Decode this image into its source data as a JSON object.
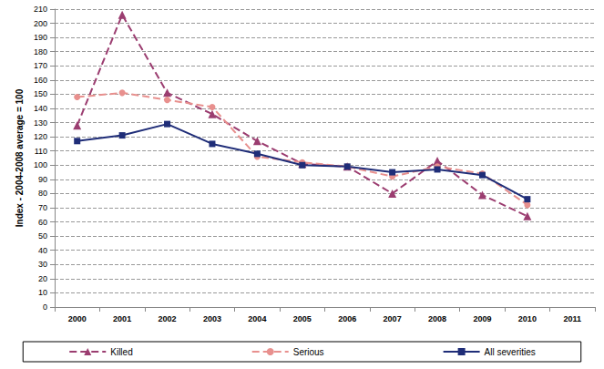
{
  "chart_data": {
    "type": "line",
    "y_label": "Index - 2004-2008 average = 100",
    "categories": [
      "2000",
      "2001",
      "2002",
      "2003",
      "2004",
      "2005",
      "2006",
      "2007",
      "2008",
      "2009",
      "2010",
      "2011"
    ],
    "series": [
      {
        "name": "Killed",
        "color": "#9b3d70",
        "marker": "triangle",
        "line_style": "dashed",
        "values": [
          128,
          206,
          151,
          136,
          117,
          101,
          99,
          80,
          103,
          79,
          64,
          null
        ]
      },
      {
        "name": "Serious",
        "color": "#e8908e",
        "marker": "circle",
        "line_style": "dashed",
        "values": [
          148,
          151,
          146,
          141,
          106,
          102,
          99,
          92,
          99,
          94,
          72,
          null
        ]
      },
      {
        "name": "All severities",
        "color": "#1f2d78",
        "marker": "square",
        "line_style": "solid",
        "values": [
          117,
          121,
          129,
          115,
          108,
          100,
          99,
          95,
          97,
          93,
          76,
          null
        ]
      }
    ],
    "ylim": [
      0,
      210
    ],
    "yticks": [
      0,
      10,
      20,
      30,
      40,
      50,
      60,
      70,
      80,
      90,
      100,
      110,
      120,
      130,
      140,
      150,
      160,
      170,
      180,
      190,
      200,
      210
    ],
    "grid": true,
    "legend": "bottom"
  }
}
